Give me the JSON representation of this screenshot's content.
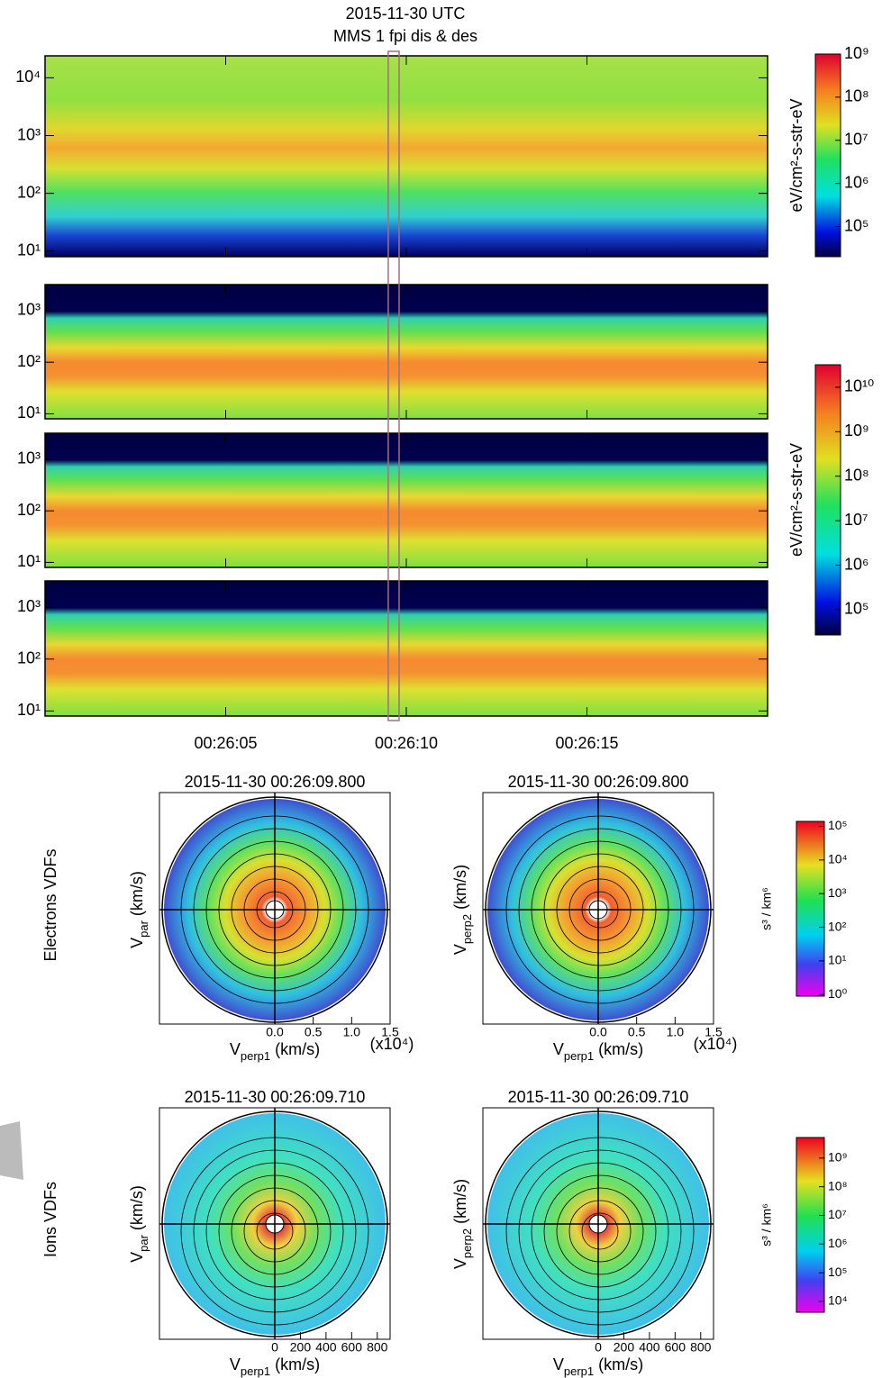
{
  "title": "2015-11-30 UTC",
  "subtitle": "MMS 1 fpi dis & des",
  "time_axis": {
    "xlim": [
      1560,
      1580
    ],
    "xticks": [
      {
        "value": 1565,
        "label": "00:26:05"
      },
      {
        "value": 1570,
        "label": "00:26:10"
      },
      {
        "value": 1575,
        "label": "00:26:15"
      }
    ]
  },
  "highlight": [
    1569.5,
    1569.8
  ],
  "spectrograms": [
    {
      "ylim": [
        8,
        24000
      ],
      "yticks": [
        {
          "value": 10,
          "label": "10¹"
        },
        {
          "value": 100,
          "label": "10²"
        },
        {
          "value": 1000,
          "label": "10³"
        },
        {
          "value": 10000,
          "label": "10⁴"
        }
      ]
    },
    {
      "ylim": [
        8,
        3200
      ],
      "yticks": [
        {
          "value": 10,
          "label": "10¹"
        },
        {
          "value": 100,
          "label": "10²"
        },
        {
          "value": 1000,
          "label": "10³"
        }
      ]
    },
    {
      "ylim": [
        8,
        3200
      ],
      "yticks": [
        {
          "value": 10,
          "label": "10¹"
        },
        {
          "value": 100,
          "label": "10²"
        },
        {
          "value": 1000,
          "label": "10³"
        }
      ]
    },
    {
      "ylim": [
        8,
        3200
      ],
      "yticks": [
        {
          "value": 10,
          "label": "10¹"
        },
        {
          "value": 100,
          "label": "10²"
        },
        {
          "value": 1000,
          "label": "10³"
        }
      ]
    }
  ],
  "colorbars": [
    {
      "label": "eV/cm²-s-str-eV",
      "ylim": [
        20000,
        1000000000
      ],
      "yticks": [
        {
          "value": 100000,
          "label": "10⁵"
        },
        {
          "value": 1000000,
          "label": "10⁶"
        },
        {
          "value": 10000000,
          "label": "10⁷"
        },
        {
          "value": 100000000,
          "label": "10⁸"
        },
        {
          "value": 1000000000,
          "label": "10⁹"
        }
      ]
    },
    {
      "label": "eV/cm²-s-str-eV",
      "ylim": [
        27000,
        32000000000
      ],
      "yticks": [
        {
          "value": 100000,
          "label": "10⁵"
        },
        {
          "value": 1000000,
          "label": "10⁶"
        },
        {
          "value": 10000000,
          "label": "10⁷"
        },
        {
          "value": 100000000,
          "label": "10⁸"
        },
        {
          "value": 1000000000,
          "label": "10⁹"
        },
        {
          "value": 10000000000,
          "label": "10¹⁰"
        }
      ]
    }
  ],
  "vdf_rows": [
    {
      "label": "Electrons VDFs",
      "xlim": [
        -1.5,
        1.5
      ],
      "xticks": [
        {
          "value": 0,
          "label": "0.0"
        },
        0.5,
        {
          "value": 1,
          "label": "1.0"
        },
        1.5
      ],
      "x_multiplier": "(x10⁴)",
      "plots": [
        {
          "title": "2015-11-30 00:26:09.800",
          "xlabel": {
            "v": "V",
            "sub": "perp1",
            "unit": " (km/s)"
          },
          "ylabel": {
            "v": "V",
            "sub": "par",
            "unit": " (km/s)"
          }
        },
        {
          "title": "2015-11-30 00:26:09.800",
          "xlabel": {
            "v": "V",
            "sub": "perp1",
            "unit": " (km/s)"
          },
          "ylabel": {
            "v": "V",
            "sub": "perp2",
            "unit": " (km/s)"
          }
        }
      ],
      "colorbar": {
        "label": "s³ / km⁶",
        "ylim": [
          0.9,
          140000
        ],
        "yticks": [
          {
            "value": 1,
            "label": "10⁰"
          },
          {
            "value": 10,
            "label": "10¹"
          },
          {
            "value": 100,
            "label": "10²"
          },
          {
            "value": 1000,
            "label": "10³"
          },
          {
            "value": 10000,
            "label": "10⁴"
          },
          {
            "value": 100000,
            "label": "10⁵"
          }
        ]
      }
    },
    {
      "label": "Ions VDFs",
      "xlim": [
        -900,
        900
      ],
      "xticks": [
        0,
        200,
        400,
        600,
        800
      ],
      "plots": [
        {
          "title": "2015-11-30 00:26:09.710",
          "xlabel": {
            "v": "V",
            "sub": "perp1",
            "unit": " (km/s)"
          },
          "ylabel": {
            "v": "V",
            "sub": "par",
            "unit": " (km/s)"
          }
        },
        {
          "title": "2015-11-30 00:26:09.710",
          "xlabel": {
            "v": "V",
            "sub": "perp1",
            "unit": " (km/s)"
          },
          "ylabel": {
            "v": "V",
            "sub": "perp2",
            "unit": " (km/s)"
          }
        }
      ],
      "colorbar": {
        "label": "s³ / km⁶",
        "ylim": [
          4200,
          5200000000
        ],
        "yticks": [
          {
            "value": 10000,
            "label": "10⁴"
          },
          {
            "value": 100000,
            "label": "10⁵"
          },
          {
            "value": 1000000,
            "label": "10⁶"
          },
          {
            "value": 10000000,
            "label": "10⁷"
          },
          {
            "value": 100000000,
            "label": "10⁸"
          },
          {
            "value": 1000000000,
            "label": "10⁹"
          }
        ]
      }
    }
  ]
}
